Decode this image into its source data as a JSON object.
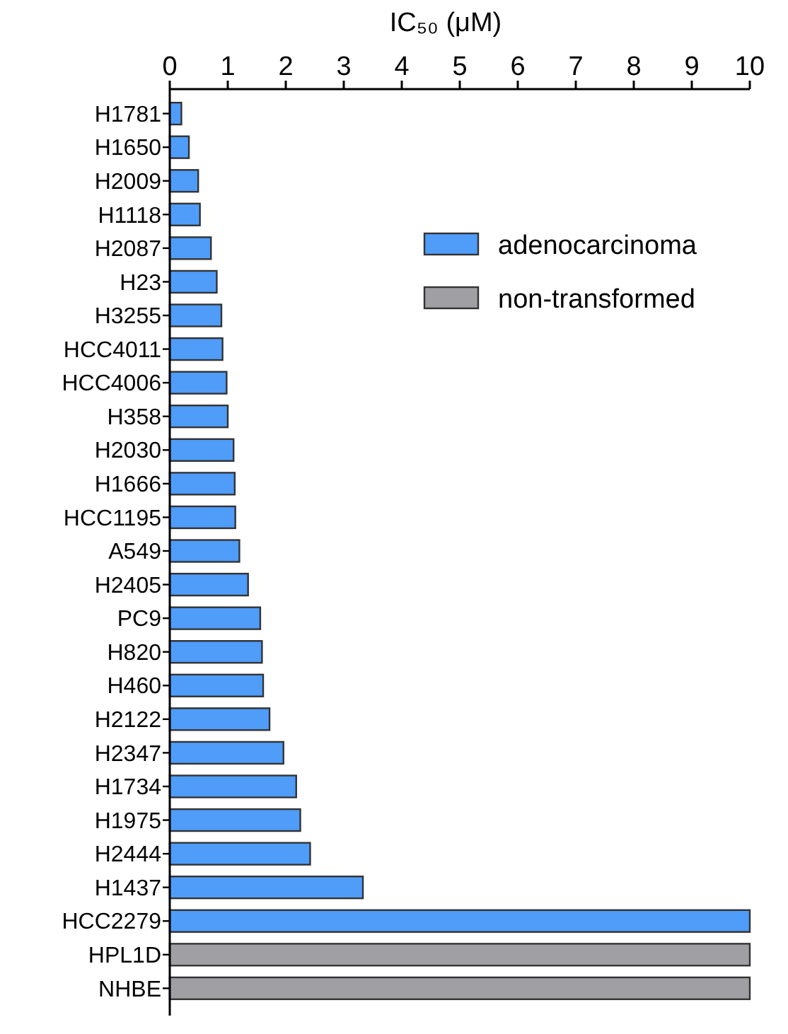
{
  "chart_data": {
    "type": "bar",
    "orientation": "horizontal",
    "xlabel": "IC₅₀ (μM)",
    "categories": [
      "H1781",
      "H1650",
      "H2009",
      "H1118",
      "H2087",
      "H23",
      "H3255",
      "HCC4011",
      "HCC4006",
      "H358",
      "H2030",
      "H1666",
      "HCC1195",
      "A549",
      "H2405",
      "PC9",
      "H820",
      "H460",
      "H2122",
      "H2347",
      "H1734",
      "H1975",
      "H2444",
      "H1437",
      "HCC2279",
      "HPL1D",
      "NHBE"
    ],
    "series": [
      {
        "name": "adenocarcinoma",
        "color": "#4f9cf9",
        "values": [
          0.2,
          0.33,
          0.49,
          0.52,
          0.71,
          0.81,
          0.89,
          0.91,
          0.98,
          1.0,
          1.1,
          1.12,
          1.13,
          1.2,
          1.35,
          1.56,
          1.59,
          1.61,
          1.72,
          1.96,
          2.18,
          2.25,
          2.42,
          3.33,
          10,
          null,
          null
        ]
      },
      {
        "name": "non-transformed",
        "color": "#a0a0a4",
        "values": [
          null,
          null,
          null,
          null,
          null,
          null,
          null,
          null,
          null,
          null,
          null,
          null,
          null,
          null,
          null,
          null,
          null,
          null,
          null,
          null,
          null,
          null,
          null,
          null,
          null,
          10,
          10
        ]
      }
    ],
    "xlim": [
      0,
      10
    ],
    "xticks": [
      0,
      1,
      2,
      3,
      4,
      5,
      6,
      7,
      8,
      9,
      10
    ],
    "legend": "top right"
  }
}
